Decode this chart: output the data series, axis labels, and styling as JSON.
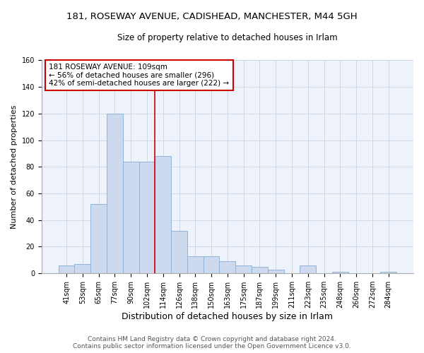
{
  "title": "181, ROSEWAY AVENUE, CADISHEAD, MANCHESTER, M44 5GH",
  "subtitle": "Size of property relative to detached houses in Irlam",
  "xlabel": "Distribution of detached houses by size in Irlam",
  "ylabel": "Number of detached properties",
  "bar_labels": [
    "41sqm",
    "53sqm",
    "65sqm",
    "77sqm",
    "90sqm",
    "102sqm",
    "114sqm",
    "126sqm",
    "138sqm",
    "150sqm",
    "163sqm",
    "175sqm",
    "187sqm",
    "199sqm",
    "211sqm",
    "223sqm",
    "235sqm",
    "248sqm",
    "260sqm",
    "272sqm",
    "284sqm"
  ],
  "bar_values": [
    6,
    7,
    52,
    120,
    84,
    84,
    88,
    32,
    13,
    13,
    9,
    6,
    5,
    3,
    0,
    6,
    0,
    1,
    0,
    0,
    1
  ],
  "bar_color": "#ccd9ee",
  "bar_edge_color": "#8fb4d9",
  "vline_color": "#cc0000",
  "annotation_text": "181 ROSEWAY AVENUE: 109sqm\n← 56% of detached houses are smaller (296)\n42% of semi-detached houses are larger (222) →",
  "annotation_box_color": "white",
  "annotation_box_edge": "#cc0000",
  "ylim": [
    0,
    160
  ],
  "yticks": [
    0,
    20,
    40,
    60,
    80,
    100,
    120,
    140,
    160
  ],
  "footer_text": "Contains HM Land Registry data © Crown copyright and database right 2024.\nContains public sector information licensed under the Open Government Licence v3.0.",
  "title_fontsize": 9.5,
  "subtitle_fontsize": 8.5,
  "xlabel_fontsize": 9,
  "ylabel_fontsize": 8,
  "tick_fontsize": 7,
  "annotation_fontsize": 7.5,
  "footer_fontsize": 6.5,
  "grid_color": "#d0d8e8",
  "background_color": "#eef2fb"
}
